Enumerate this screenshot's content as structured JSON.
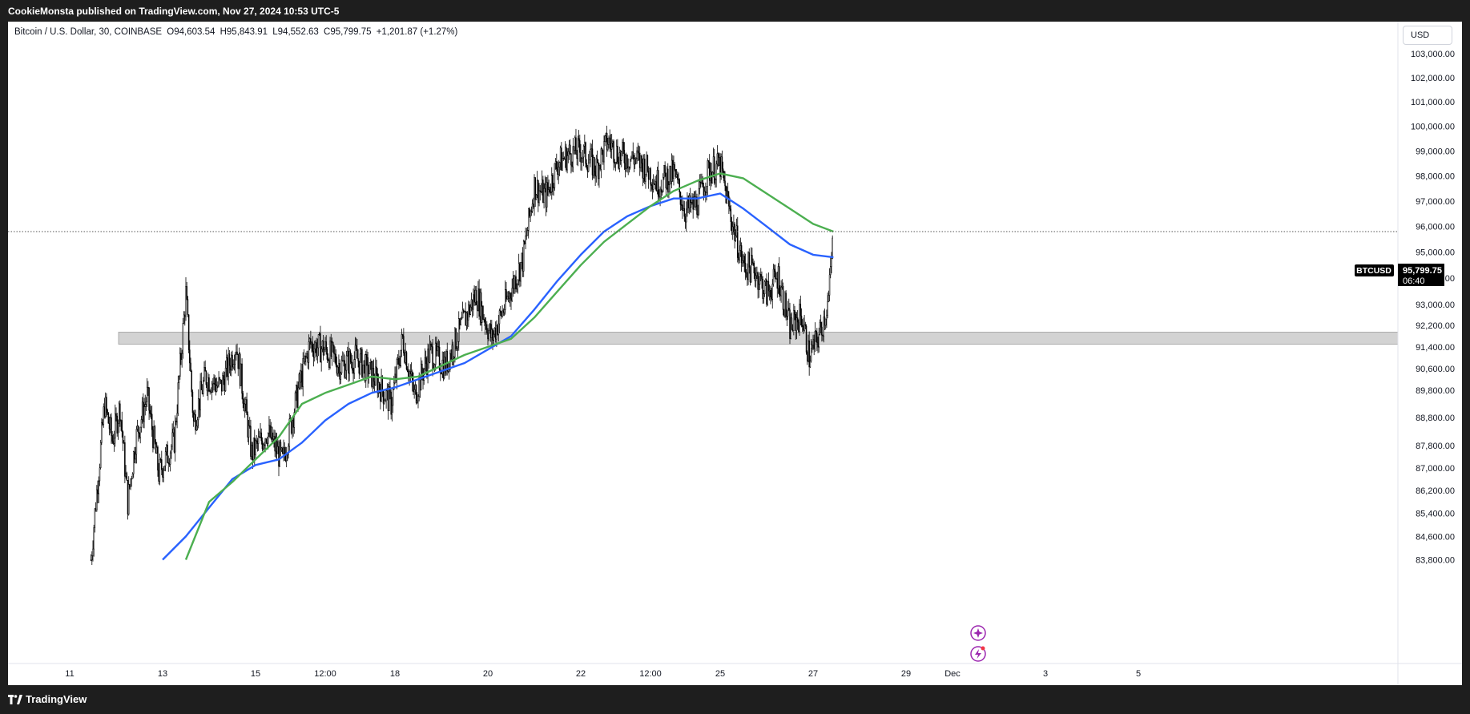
{
  "header": {
    "attribution": "CookieMonsta published on TradingView.com, Nov 27, 2024 10:53 UTC-5"
  },
  "symbol_info": {
    "name": "Bitcoin / U.S. Dollar, 30, COINBASE",
    "open": "O94,603.54",
    "high": "H95,843.91",
    "low": "L94,552.63",
    "close": "C95,799.75",
    "change": "+1,201.87 (+1.27%)"
  },
  "currency": "USD",
  "price_label": {
    "symbol": "BTCUSD",
    "price": "95,799.75",
    "countdown": "06:40"
  },
  "footer": {
    "logo_text": "TradingView",
    "logo_icon": "tradingview-logo-icon"
  },
  "colors": {
    "background": "#ffffff",
    "candles": "#000000",
    "ma_blue": "#2962ff",
    "ma_green": "#4caf50",
    "zone": "#d3d3d3",
    "last_price_line": "#555555",
    "indicator_icons": "#9c27b0"
  },
  "indicator_icons": [
    "sparkle-icon",
    "lightning-icon"
  ],
  "chart_data": {
    "type": "candlestick",
    "title": "Bitcoin / U.S. Dollar, 30, COINBASE",
    "x_ticks": [
      {
        "date": "Nov 11",
        "label": "11"
      },
      {
        "date": "Nov 13",
        "label": "13"
      },
      {
        "date": "Nov 15",
        "label": "15"
      },
      {
        "date": "Nov 16 12:00",
        "label": "12:00"
      },
      {
        "date": "Nov 18",
        "label": "18"
      },
      {
        "date": "Nov 20",
        "label": "20"
      },
      {
        "date": "Nov 22",
        "label": "22"
      },
      {
        "date": "Nov 23 12:00",
        "label": "12:00"
      },
      {
        "date": "Nov 25",
        "label": "25"
      },
      {
        "date": "Nov 27",
        "label": "27"
      },
      {
        "date": "Nov 29",
        "label": "29"
      },
      {
        "date": "Dec 1",
        "label": "Dec"
      },
      {
        "date": "Dec 3",
        "label": "3"
      },
      {
        "date": "Dec 5",
        "label": "5"
      }
    ],
    "y_ticks": [
      83800,
      84600,
      85400,
      86200,
      87000,
      87800,
      88800,
      89800,
      90600,
      91400,
      92200,
      93000,
      94000,
      95000,
      96000,
      97000,
      98000,
      99000,
      100000,
      101000,
      102000,
      103000
    ],
    "y_tick_labels": [
      "83,800.00",
      "84,600.00",
      "85,400.00",
      "86,200.00",
      "87,000.00",
      "87,800.00",
      "88,800.00",
      "89,800.00",
      "90,600.00",
      "91,400.00",
      "92,200.00",
      "93,000.00",
      "94,000.00",
      "95,000.00",
      "96,000.00",
      "97,000.00",
      "98,000.00",
      "99,000.00",
      "100,000.00",
      "101,000.00",
      "102,000.00",
      "103,000.00"
    ],
    "y_scale": "log",
    "price_path": [
      {
        "date": "Nov 11 11:00",
        "price": 83800
      },
      {
        "date": "Nov 11 13:00",
        "price": 85400
      },
      {
        "date": "Nov 11 18:00",
        "price": 89300
      },
      {
        "date": "Nov 11 22:00",
        "price": 88000
      },
      {
        "date": "Nov 12 02:00",
        "price": 89200
      },
      {
        "date": "Nov 12 06:00",
        "price": 85800
      },
      {
        "date": "Nov 12 10:00",
        "price": 88000
      },
      {
        "date": "Nov 12 16:00",
        "price": 89600
      },
      {
        "date": "Nov 12 22:00",
        "price": 86800
      },
      {
        "date": "Nov 13 06:00",
        "price": 88000
      },
      {
        "date": "Nov 13 12:00",
        "price": 93400
      },
      {
        "date": "Nov 13 16:00",
        "price": 88600
      },
      {
        "date": "Nov 13 22:00",
        "price": 90300
      },
      {
        "date": "Nov 14 06:00",
        "price": 89900
      },
      {
        "date": "Nov 14 14:00",
        "price": 91500
      },
      {
        "date": "Nov 14 22:00",
        "price": 87500
      },
      {
        "date": "Nov 15 06:00",
        "price": 88300
      },
      {
        "date": "Nov 15 14:00",
        "price": 87200
      },
      {
        "date": "Nov 15 22:00",
        "price": 89800
      },
      {
        "date": "Nov 16 04:00",
        "price": 91500
      },
      {
        "date": "Nov 16 12:00",
        "price": 91300
      },
      {
        "date": "Nov 16 20:00",
        "price": 90700
      },
      {
        "date": "Nov 17 04:00",
        "price": 91000
      },
      {
        "date": "Nov 17 14:00",
        "price": 90200
      },
      {
        "date": "Nov 17 22:00",
        "price": 89300
      },
      {
        "date": "Nov 18 04:00",
        "price": 91700
      },
      {
        "date": "Nov 18 10:00",
        "price": 89600
      },
      {
        "date": "Nov 18 18:00",
        "price": 91200
      },
      {
        "date": "Nov 19 02:00",
        "price": 90700
      },
      {
        "date": "Nov 19 10:00",
        "price": 92100
      },
      {
        "date": "Nov 19 18:00",
        "price": 93400
      },
      {
        "date": "Nov 20 02:00",
        "price": 91700
      },
      {
        "date": "Nov 20 10:00",
        "price": 93200
      },
      {
        "date": "Nov 20 18:00",
        "price": 94700
      },
      {
        "date": "Nov 21 00:00",
        "price": 97600
      },
      {
        "date": "Nov 21 06:00",
        "price": 97200
      },
      {
        "date": "Nov 21 12:00",
        "price": 98500
      },
      {
        "date": "Nov 21 18:00",
        "price": 98900
      },
      {
        "date": "Nov 22 00:00",
        "price": 99000
      },
      {
        "date": "Nov 22 08:00",
        "price": 98300
      },
      {
        "date": "Nov 22 14:00",
        "price": 99400
      },
      {
        "date": "Nov 22 20:00",
        "price": 98800
      },
      {
        "date": "Nov 23 04:00",
        "price": 98700
      },
      {
        "date": "Nov 23 10:00",
        "price": 98300
      },
      {
        "date": "Nov 23 16:00",
        "price": 97700
      },
      {
        "date": "Nov 24 00:00",
        "price": 98100
      },
      {
        "date": "Nov 24 06:00",
        "price": 96600
      },
      {
        "date": "Nov 24 12:00",
        "price": 96900
      },
      {
        "date": "Nov 24 18:00",
        "price": 98200
      },
      {
        "date": "Nov 25 00:00",
        "price": 98400
      },
      {
        "date": "Nov 25 06:00",
        "price": 96200
      },
      {
        "date": "Nov 25 12:00",
        "price": 94500
      },
      {
        "date": "Nov 25 18:00",
        "price": 94300
      },
      {
        "date": "Nov 26 00:00",
        "price": 93400
      },
      {
        "date": "Nov 26 06:00",
        "price": 94100
      },
      {
        "date": "Nov 26 12:00",
        "price": 92100
      },
      {
        "date": "Nov 26 18:00",
        "price": 92600
      },
      {
        "date": "Nov 26 22:00",
        "price": 91000
      },
      {
        "date": "Nov 27 04:00",
        "price": 92000
      },
      {
        "date": "Nov 27 08:00",
        "price": 93200
      },
      {
        "date": "Nov 27 10:30",
        "price": 95800
      }
    ],
    "series": [
      {
        "points": [
          {
            "date": "Nov 13 00:00",
            "value": 83800
          },
          {
            "date": "Nov 13 12:00",
            "value": 84600
          },
          {
            "date": "Nov 14 00:00",
            "value": 85600
          },
          {
            "date": "Nov 14 12:00",
            "value": 86600
          },
          {
            "date": "Nov 15 00:00",
            "value": 87100
          },
          {
            "date": "Nov 15 12:00",
            "value": 87300
          },
          {
            "date": "Nov 16 00:00",
            "value": 87900
          },
          {
            "date": "Nov 16 12:00",
            "value": 88700
          },
          {
            "date": "Nov 17 00:00",
            "value": 89300
          },
          {
            "date": "Nov 17 12:00",
            "value": 89700
          },
          {
            "date": "Nov 18 00:00",
            "value": 89900
          },
          {
            "date": "Nov 18 12:00",
            "value": 90200
          },
          {
            "date": "Nov 19 00:00",
            "value": 90500
          },
          {
            "date": "Nov 19 12:00",
            "value": 90800
          },
          {
            "date": "Nov 20 00:00",
            "value": 91300
          },
          {
            "date": "Nov 20 12:00",
            "value": 91800
          },
          {
            "date": "Nov 21 00:00",
            "value": 92800
          },
          {
            "date": "Nov 21 12:00",
            "value": 93900
          },
          {
            "date": "Nov 22 00:00",
            "value": 94900
          },
          {
            "date": "Nov 22 12:00",
            "value": 95800
          },
          {
            "date": "Nov 23 00:00",
            "value": 96400
          },
          {
            "date": "Nov 23 12:00",
            "value": 96800
          },
          {
            "date": "Nov 24 00:00",
            "value": 97100
          },
          {
            "date": "Nov 24 12:00",
            "value": 97100
          },
          {
            "date": "Nov 25 00:00",
            "value": 97300
          },
          {
            "date": "Nov 25 12:00",
            "value": 96700
          },
          {
            "date": "Nov 26 00:00",
            "value": 96000
          },
          {
            "date": "Nov 26 12:00",
            "value": 95300
          },
          {
            "date": "Nov 27 00:00",
            "value": 94900
          },
          {
            "date": "Nov 27 10:30",
            "value": 94800
          }
        ]
      },
      {
        "points": [
          {
            "date": "Nov 13 12:00",
            "value": 83800
          },
          {
            "date": "Nov 14 00:00",
            "value": 85800
          },
          {
            "date": "Nov 14 12:00",
            "value": 86500
          },
          {
            "date": "Nov 15 00:00",
            "value": 87300
          },
          {
            "date": "Nov 15 12:00",
            "value": 88100
          },
          {
            "date": "Nov 16 00:00",
            "value": 89300
          },
          {
            "date": "Nov 16 12:00",
            "value": 89700
          },
          {
            "date": "Nov 17 00:00",
            "value": 90000
          },
          {
            "date": "Nov 17 12:00",
            "value": 90300
          },
          {
            "date": "Nov 18 00:00",
            "value": 90200
          },
          {
            "date": "Nov 18 12:00",
            "value": 90300
          },
          {
            "date": "Nov 19 00:00",
            "value": 90700
          },
          {
            "date": "Nov 19 12:00",
            "value": 91100
          },
          {
            "date": "Nov 20 00:00",
            "value": 91400
          },
          {
            "date": "Nov 20 12:00",
            "value": 91700
          },
          {
            "date": "Nov 21 00:00",
            "value": 92500
          },
          {
            "date": "Nov 21 12:00",
            "value": 93500
          },
          {
            "date": "Nov 22 00:00",
            "value": 94500
          },
          {
            "date": "Nov 22 12:00",
            "value": 95400
          },
          {
            "date": "Nov 23 00:00",
            "value": 96100
          },
          {
            "date": "Nov 23 12:00",
            "value": 96800
          },
          {
            "date": "Nov 24 00:00",
            "value": 97400
          },
          {
            "date": "Nov 24 12:00",
            "value": 97800
          },
          {
            "date": "Nov 25 00:00",
            "value": 98100
          },
          {
            "date": "Nov 25 12:00",
            "value": 97900
          },
          {
            "date": "Nov 26 00:00",
            "value": 97300
          },
          {
            "date": "Nov 26 12:00",
            "value": 96700
          },
          {
            "date": "Nov 27 00:00",
            "value": 96100
          },
          {
            "date": "Nov 27 10:30",
            "value": 95800
          }
        ]
      }
    ],
    "zone": {
      "low": 91500,
      "high": 91950,
      "from": "Nov 13 00:00",
      "to": "Dec 5 12:00"
    },
    "last_price": 95799.75
  }
}
